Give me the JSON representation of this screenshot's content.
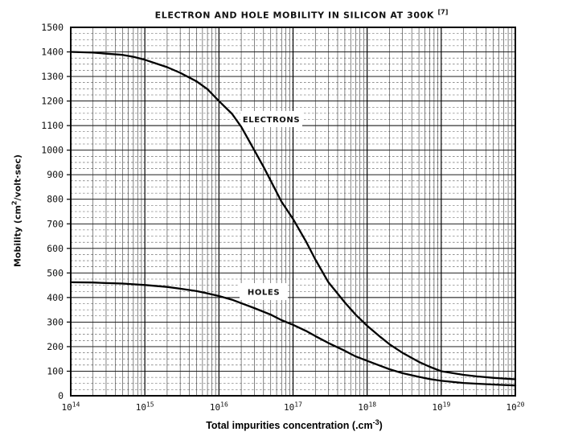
{
  "title": {
    "text": "ELECTRON AND HOLE MOBILITY IN SILICON AT 300K",
    "ref": "[7]"
  },
  "labels": {
    "ylabel_prefix": "Mobility (cm",
    "ylabel_sup": "2",
    "ylabel_suffix": "/volt·sec)",
    "xlabel_prefix": "Total impurities concentration (.cm",
    "xlabel_sup": "-3",
    "xlabel_suffix": ")"
  },
  "chart_data": {
    "type": "line",
    "title": "ELECTRON AND HOLE MOBILITY IN SILICON AT 300K [7]",
    "xlabel": "Total impurities concentration (.cm-3)",
    "ylabel": "Mobility (cm2/volt·sec)",
    "x_scale": "log",
    "x_tick_base": "10",
    "x_tick_exponents": [
      14,
      15,
      16,
      17,
      18,
      19,
      20
    ],
    "y_ticks": [
      0,
      100,
      200,
      300,
      400,
      500,
      600,
      700,
      800,
      900,
      1000,
      1100,
      1200,
      1300,
      1400,
      1500
    ],
    "ylim": [
      0,
      1500
    ],
    "y_major_step": 100,
    "y_minor_step": 25,
    "grid": "on",
    "line_color": "#000000",
    "series": [
      {
        "name": "ELECTRONS",
        "points": [
          [
            100000000000000.0,
            1400
          ],
          [
            200000000000000.0,
            1397
          ],
          [
            300000000000000.0,
            1393
          ],
          [
            500000000000000.0,
            1388
          ],
          [
            700000000000000.0,
            1380
          ],
          [
            1000000000000000.0,
            1368
          ],
          [
            2000000000000000.0,
            1338
          ],
          [
            3000000000000000.0,
            1315
          ],
          [
            5000000000000000.0,
            1280
          ],
          [
            7000000000000000.0,
            1248
          ],
          [
            1e+16,
            1200
          ],
          [
            1.5e+16,
            1148
          ],
          [
            2e+16,
            1095
          ],
          [
            3e+16,
            1000
          ],
          [
            4e+16,
            932
          ],
          [
            5e+16,
            875
          ],
          [
            7e+16,
            790
          ],
          [
            1e+17,
            720
          ],
          [
            1.5e+17,
            628
          ],
          [
            2e+17,
            555
          ],
          [
            3e+17,
            462
          ],
          [
            5e+17,
            380
          ],
          [
            7e+17,
            330
          ],
          [
            1e+18,
            285
          ],
          [
            1.5e+18,
            240
          ],
          [
            2e+18,
            210
          ],
          [
            3e+18,
            175
          ],
          [
            5e+18,
            138
          ],
          [
            7e+18,
            118
          ],
          [
            1e+19,
            100
          ],
          [
            2e+19,
            85
          ],
          [
            3e+19,
            79
          ],
          [
            5e+19,
            73
          ],
          [
            7e+19,
            70
          ],
          [
            1e+20,
            67
          ]
        ]
      },
      {
        "name": "HOLES",
        "points": [
          [
            100000000000000.0,
            462
          ],
          [
            200000000000000.0,
            461
          ],
          [
            300000000000000.0,
            459
          ],
          [
            500000000000000.0,
            457
          ],
          [
            700000000000000.0,
            454
          ],
          [
            1000000000000000.0,
            451
          ],
          [
            2000000000000000.0,
            443
          ],
          [
            3000000000000000.0,
            436
          ],
          [
            5000000000000000.0,
            426
          ],
          [
            7000000000000000.0,
            417
          ],
          [
            1e+16,
            406
          ],
          [
            1.5e+16,
            391
          ],
          [
            2e+16,
            377
          ],
          [
            3e+16,
            357
          ],
          [
            5e+16,
            330
          ],
          [
            7e+16,
            308
          ],
          [
            1e+17,
            289
          ],
          [
            1.5e+17,
            264
          ],
          [
            2e+17,
            243
          ],
          [
            3e+17,
            215
          ],
          [
            5e+17,
            183
          ],
          [
            7e+17,
            160
          ],
          [
            1e+18,
            142
          ],
          [
            1.5e+18,
            122
          ],
          [
            2e+18,
            108
          ],
          [
            3e+18,
            92
          ],
          [
            5e+18,
            77
          ],
          [
            7e+18,
            68
          ],
          [
            1e+19,
            61
          ],
          [
            2e+19,
            52
          ],
          [
            3e+19,
            49
          ],
          [
            5e+19,
            46
          ],
          [
            7e+19,
            44
          ],
          [
            1e+20,
            42
          ]
        ]
      }
    ]
  }
}
